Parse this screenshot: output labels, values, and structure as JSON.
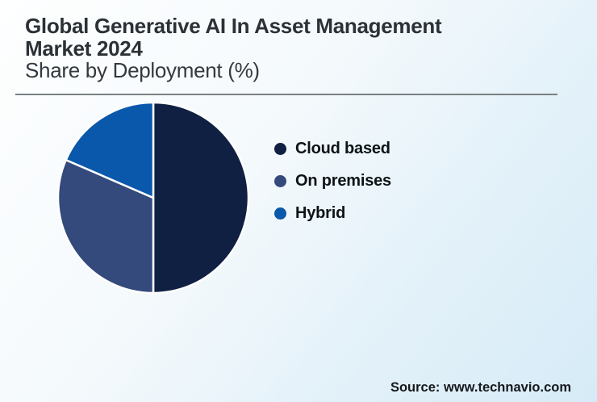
{
  "header": {
    "title_line1": "Global Generative AI In Asset Management",
    "title_line2": "Market 2024",
    "subtitle": "Share by Deployment (%)"
  },
  "chart_data": {
    "type": "pie",
    "title": "Global Generative AI In Asset Management Market 2024",
    "subtitle": "Share by Deployment (%)",
    "labels": [
      "Cloud based",
      "On premises",
      "Hybrid"
    ],
    "values": [
      50,
      31.5,
      18.5
    ],
    "unit": "%",
    "colors": [
      "#0f2043",
      "#344a7c",
      "#0a58ab"
    ],
    "slice_border_color": "#ffffff",
    "legend_position": "right",
    "start_angle_deg": 0,
    "direction": "clockwise",
    "data_labels_shown": false
  },
  "footer": {
    "source": "Source: www.technavio.com"
  },
  "style_colors": {
    "background_top_left": "#feffff",
    "background_bottom_right": "#d6ebf7",
    "divider": "#798082",
    "title_text": "#2b3136"
  }
}
